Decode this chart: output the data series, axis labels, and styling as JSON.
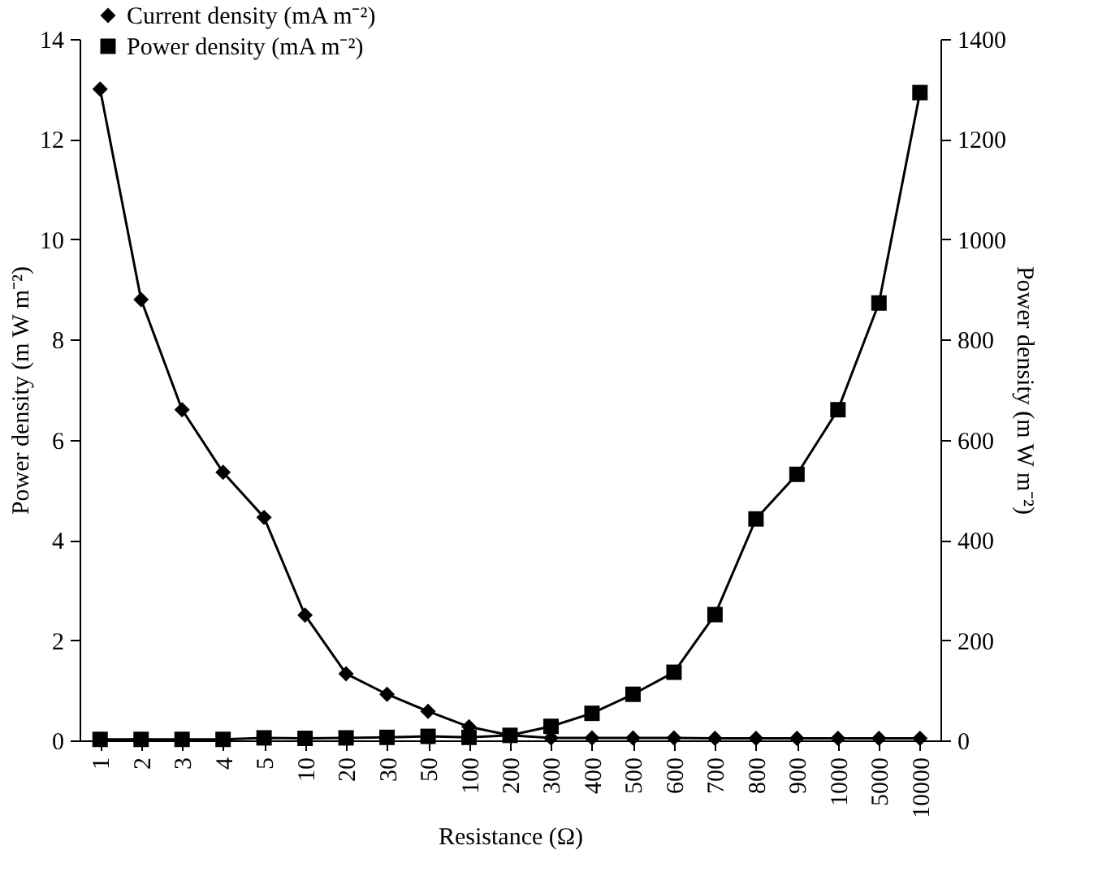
{
  "chart_data": {
    "type": "line",
    "xlabel": "Resistance (Ω)",
    "ylabel": "Power density (m W m⁻²)",
    "y2label": "Power density (m W m⁻²)",
    "categories": [
      "1",
      "2",
      "3",
      "4",
      "5",
      "10",
      "20",
      "30",
      "50",
      "100",
      "200",
      "300",
      "400",
      "500",
      "600",
      "700",
      "800",
      "900",
      "1000",
      "5000",
      "10000"
    ],
    "series": [
      {
        "name": "Current density (mA  m⁻²)",
        "color": "#000000",
        "marker": "diamond",
        "values": [
          13.0,
          8.8,
          6.6,
          5.35,
          4.45,
          2.5,
          1.33,
          0.92,
          0.58,
          0.27,
          0.1,
          0.05,
          0.05,
          0.05,
          0.05,
          0.04,
          0.04,
          0.04,
          0.04,
          0.04,
          0.04
        ]
      },
      {
        "name": "Power density (mA  m⁻²)",
        "color": "#000000",
        "marker": "square",
        "axis": "y2",
        "values": [
          2,
          2,
          2,
          2,
          5,
          4,
          5,
          6,
          8,
          6,
          10,
          28,
          54,
          92,
          136,
          251,
          442,
          531,
          660,
          873,
          1293
        ]
      }
    ],
    "ylim": [
      0,
      14
    ],
    "yticks": [
      0,
      2,
      4,
      6,
      8,
      10,
      12,
      14
    ],
    "y2lim": [
      0,
      1400
    ],
    "y2ticks": [
      0,
      200,
      400,
      600,
      800,
      1000,
      1200,
      1400
    ],
    "grid": false,
    "legend": "top left",
    "line_style": "solid"
  }
}
